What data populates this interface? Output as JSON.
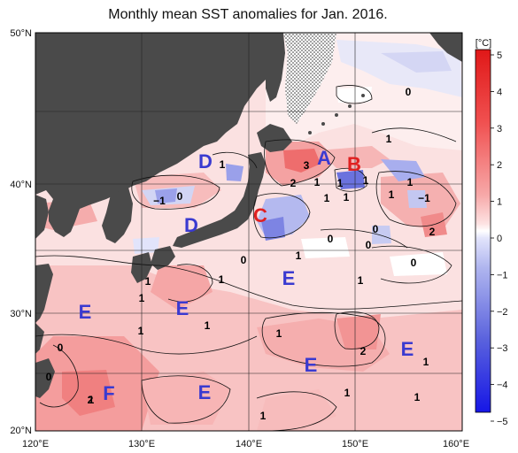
{
  "title": "Monthly mean SST anomalies for Jan. 2016.",
  "colorbar": {
    "unit": "[°C]",
    "ticks": [
      "5",
      "4",
      "3",
      "2",
      "1",
      "0",
      "−1",
      "−2",
      "−3",
      "−4",
      "−5"
    ]
  },
  "axes": {
    "lon_ticks": [
      "120°E",
      "130°E",
      "140°E",
      "150°E",
      "160°E"
    ],
    "lat_ticks": [
      "50°N",
      "40°N",
      "30°N",
      "20°N"
    ]
  },
  "regions": [
    {
      "key": "A",
      "label": "A",
      "color": "#3a3ad0"
    },
    {
      "key": "B",
      "label": "B",
      "color": "#e02020"
    },
    {
      "key": "C",
      "label": "C",
      "color": "#e02020"
    },
    {
      "key": "D1",
      "label": "D",
      "color": "#3a3ad0"
    },
    {
      "key": "D2",
      "label": "D",
      "color": "#3a3ad0"
    },
    {
      "key": "E1",
      "label": "E",
      "color": "#3a3ad0"
    },
    {
      "key": "E2",
      "label": "E",
      "color": "#3a3ad0"
    },
    {
      "key": "E3",
      "label": "E",
      "color": "#3a3ad0"
    },
    {
      "key": "E4",
      "label": "E",
      "color": "#3a3ad0"
    },
    {
      "key": "E5",
      "label": "E",
      "color": "#3a3ad0"
    },
    {
      "key": "E6",
      "label": "E",
      "color": "#3a3ad0"
    },
    {
      "key": "F",
      "label": "F",
      "color": "#3a3ad0"
    }
  ],
  "contour_labels": [
    "0",
    "1",
    "1",
    "3",
    "2",
    "1",
    "1",
    "1",
    "1",
    "1",
    "−1",
    "0",
    "1",
    "1",
    "0",
    "2",
    "−1",
    "0",
    "0",
    "0",
    "1",
    "0",
    "1",
    "0",
    "1",
    "1",
    "1",
    "1",
    "2",
    "1",
    "0",
    "1",
    "1",
    "1",
    "1",
    "2",
    "1",
    "1"
  ],
  "colors": {
    "land": "#4a4a4a",
    "ice": "#dddddd",
    "grid": "#222222"
  }
}
